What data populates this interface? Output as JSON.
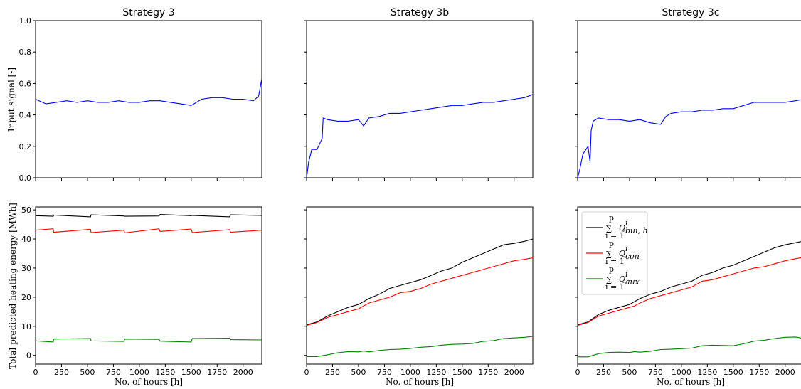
{
  "chart_data": {
    "type": "line",
    "layout": "2x3 grid",
    "columns": [
      "Strategy 3",
      "Strategy 3b",
      "Strategy 3c"
    ],
    "top_row": {
      "ylabel": "Input signal [-]",
      "ylim": [
        0,
        1.0
      ],
      "yticks": [
        "0.0",
        "0.2",
        "0.4",
        "0.6",
        "0.8",
        "1.0"
      ],
      "series_color": "#0000ff",
      "panels": [
        {
          "title": "Strategy 3",
          "x": [
            0,
            100,
            200,
            300,
            400,
            500,
            600,
            700,
            800,
            900,
            1000,
            1100,
            1200,
            1300,
            1400,
            1500,
            1600,
            1700,
            1800,
            1900,
            2000,
            2100,
            2150,
            2180
          ],
          "y": [
            0.5,
            0.47,
            0.48,
            0.49,
            0.48,
            0.49,
            0.48,
            0.48,
            0.49,
            0.48,
            0.48,
            0.49,
            0.49,
            0.48,
            0.47,
            0.46,
            0.5,
            0.51,
            0.51,
            0.5,
            0.5,
            0.49,
            0.52,
            0.63
          ]
        },
        {
          "title": "Strategy 3b",
          "x": [
            0,
            20,
            50,
            100,
            150,
            160,
            200,
            300,
            400,
            500,
            550,
            600,
            700,
            800,
            900,
            1000,
            1100,
            1200,
            1300,
            1400,
            1500,
            1600,
            1700,
            1800,
            1900,
            2000,
            2100,
            2180
          ],
          "y": [
            0.0,
            0.1,
            0.18,
            0.18,
            0.25,
            0.38,
            0.37,
            0.36,
            0.36,
            0.37,
            0.33,
            0.38,
            0.39,
            0.41,
            0.41,
            0.42,
            0.43,
            0.44,
            0.45,
            0.46,
            0.46,
            0.47,
            0.48,
            0.48,
            0.49,
            0.5,
            0.51,
            0.53
          ]
        },
        {
          "title": "Strategy 3c",
          "x": [
            0,
            20,
            50,
            100,
            120,
            130,
            150,
            200,
            300,
            400,
            500,
            600,
            700,
            800,
            850,
            900,
            1000,
            1100,
            1200,
            1300,
            1400,
            1500,
            1600,
            1700,
            1800,
            1900,
            2000,
            2100,
            2180
          ],
          "y": [
            0.0,
            0.05,
            0.15,
            0.2,
            0.1,
            0.3,
            0.36,
            0.38,
            0.37,
            0.37,
            0.36,
            0.37,
            0.35,
            0.34,
            0.39,
            0.41,
            0.42,
            0.42,
            0.43,
            0.43,
            0.44,
            0.44,
            0.46,
            0.48,
            0.48,
            0.48,
            0.48,
            0.49,
            0.5
          ]
        }
      ]
    },
    "bottom_row": {
      "ylabel": "Total predicted heating energy [MWh]",
      "xlabel": "No. of hours [h]",
      "xlim": [
        0,
        2180
      ],
      "ylim": [
        -3,
        51
      ],
      "xticks": [
        "0",
        "250",
        "500",
        "750",
        "1000",
        "1250",
        "1500",
        "1750",
        "2000"
      ],
      "yticks": [
        "0",
        "10",
        "20",
        "30",
        "40",
        "50"
      ],
      "legend": {
        "location": "upper-left of Strategy 3c panel",
        "entries": [
          {
            "sum": "∑",
            "sub": "i = 1",
            "sup": "p",
            "Q": "Q",
            "qsup": "i",
            "qsub": "bui, h",
            "color": "#000000"
          },
          {
            "sum": "∑",
            "sub": "i = 1",
            "sup": "p",
            "Q": "Q",
            "qsup": "i",
            "qsub": "con",
            "color": "#ff0000"
          },
          {
            "sum": "∑",
            "sub": "i = 1",
            "sup": "p",
            "Q": "Q",
            "qsup": "i",
            "qsub": "aux",
            "color": "#008000"
          }
        ]
      },
      "panels": [
        {
          "title": "Strategy 3",
          "x": [
            0,
            170,
            175,
            530,
            535,
            850,
            860,
            1190,
            1200,
            1500,
            1510,
            1870,
            1880,
            2180
          ],
          "series": [
            {
              "color": "#000000",
              "values": [
                48.0,
                47.8,
                48.2,
                47.6,
                48.3,
                47.9,
                47.8,
                47.9,
                48.4,
                48.0,
                48.1,
                47.6,
                48.3,
                48.1
              ]
            },
            {
              "color": "#ff0000",
              "values": [
                43.0,
                43.5,
                42.3,
                43.3,
                42.2,
                43.0,
                42.1,
                43.5,
                42.6,
                43.4,
                42.2,
                43.2,
                42.3,
                43.0
              ]
            },
            {
              "color": "#008000",
              "values": [
                5.0,
                4.6,
                5.6,
                5.8,
                5.0,
                4.8,
                5.6,
                5.5,
                4.9,
                4.6,
                5.8,
                5.9,
                5.4,
                5.3
              ]
            }
          ]
        },
        {
          "title": "Strategy 3b",
          "x": [
            0,
            100,
            200,
            300,
            400,
            500,
            550,
            600,
            700,
            800,
            900,
            1000,
            1100,
            1200,
            1300,
            1400,
            1500,
            1600,
            1700,
            1800,
            1900,
            2000,
            2100,
            2180
          ],
          "series": [
            {
              "color": "#000000",
              "values": [
                10.5,
                11.5,
                13.5,
                15.0,
                16.5,
                17.5,
                18.5,
                19.5,
                21.0,
                23.0,
                24.0,
                25.0,
                26.0,
                27.5,
                29.0,
                30.0,
                32.0,
                33.5,
                35.0,
                36.5,
                38.0,
                38.5,
                39.2,
                40.0
              ]
            },
            {
              "color": "#ff0000",
              "values": [
                10.3,
                11.3,
                13.0,
                14.0,
                15.0,
                16.0,
                17.0,
                18.0,
                19.0,
                20.0,
                21.5,
                22.0,
                23.0,
                24.5,
                25.5,
                26.5,
                27.5,
                28.5,
                29.5,
                30.5,
                31.5,
                32.5,
                33.0,
                33.5
              ]
            },
            {
              "color": "#008000",
              "values": [
                -0.4,
                -0.4,
                0.2,
                0.9,
                1.3,
                1.2,
                1.5,
                1.2,
                1.7,
                2.0,
                2.1,
                2.4,
                2.8,
                3.0,
                3.5,
                3.8,
                3.9,
                4.1,
                4.8,
                5.1,
                5.8,
                6.0,
                6.2,
                6.5
              ]
            }
          ]
        },
        {
          "title": "Strategy 3c",
          "x": [
            0,
            100,
            200,
            300,
            400,
            500,
            550,
            600,
            700,
            800,
            900,
            1000,
            1100,
            1200,
            1300,
            1400,
            1500,
            1600,
            1700,
            1800,
            1900,
            2000,
            2100,
            2180
          ],
          "series": [
            {
              "color": "#000000",
              "values": [
                10.5,
                11.5,
                14.0,
                15.5,
                16.5,
                17.5,
                18.5,
                19.5,
                21.0,
                22.0,
                23.5,
                24.5,
                25.5,
                27.5,
                28.5,
                30.0,
                31.0,
                32.5,
                34.0,
                35.5,
                37.0,
                38.0,
                38.7,
                39.3
              ]
            },
            {
              "color": "#ff0000",
              "values": [
                10.3,
                11.3,
                13.5,
                14.5,
                15.5,
                16.5,
                17.0,
                18.0,
                19.5,
                20.5,
                21.5,
                22.5,
                23.5,
                25.5,
                26.0,
                27.0,
                28.0,
                29.0,
                30.0,
                30.5,
                31.5,
                32.5,
                33.2,
                33.7
              ]
            },
            {
              "color": "#008000",
              "values": [
                -0.5,
                -0.5,
                0.6,
                1.0,
                1.1,
                1.0,
                1.3,
                1.1,
                1.4,
                2.0,
                2.1,
                2.3,
                2.5,
                3.3,
                3.5,
                3.4,
                3.3,
                4.0,
                4.9,
                5.2,
                5.8,
                6.2,
                6.3,
                5.8
              ]
            }
          ]
        }
      ]
    }
  }
}
